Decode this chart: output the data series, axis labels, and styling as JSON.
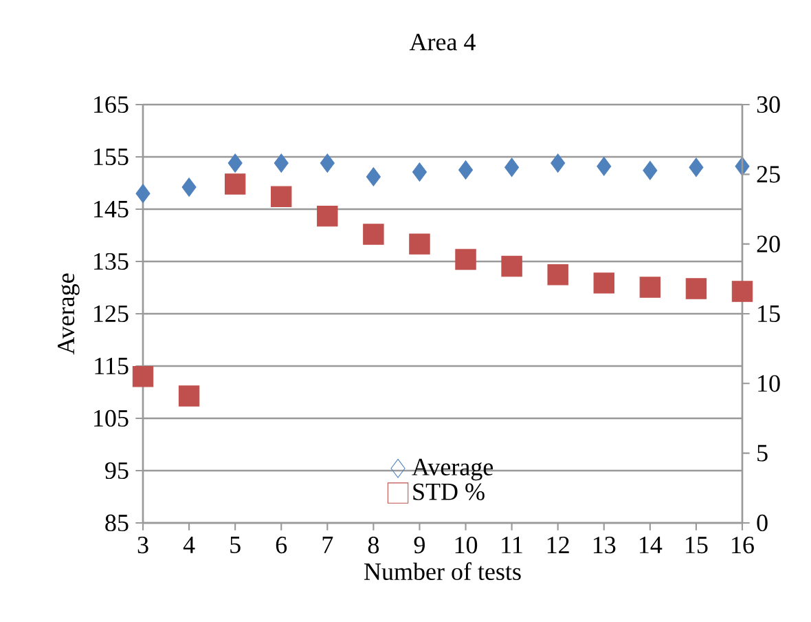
{
  "chart_data": {
    "type": "scatter",
    "title": "Area 4",
    "xlabel": "Number of tests",
    "ylabel": "Average",
    "categories": [
      "3",
      "4",
      "5",
      "6",
      "7",
      "8",
      "9",
      "10",
      "11",
      "12",
      "13",
      "14",
      "15",
      "16"
    ],
    "series": [
      {
        "name": "Average",
        "color": "#4f81bd",
        "marker": "diamond",
        "values": [
          148.0,
          149.2,
          153.8,
          153.8,
          153.8,
          151.2,
          152.1,
          152.5,
          153.0,
          153.8,
          153.2,
          152.4,
          153.0,
          153.2
        ]
      },
      {
        "name": "STD %",
        "color": "#c0504d",
        "marker": "square",
        "axis": "y2",
        "values": [
          10.5,
          9.1,
          24.3,
          23.4,
          22.0,
          20.7,
          20.0,
          18.9,
          18.4,
          17.8,
          17.2,
          16.9,
          16.8,
          16.6
        ]
      }
    ],
    "ylim": [
      85,
      165
    ],
    "yticks": [
      85,
      95,
      105,
      115,
      125,
      135,
      145,
      155,
      165
    ],
    "y2lim": [
      0,
      30
    ],
    "y2ticks": [
      0,
      5,
      10,
      15,
      20,
      25,
      30
    ],
    "grid": "y",
    "legend": "bottom"
  }
}
